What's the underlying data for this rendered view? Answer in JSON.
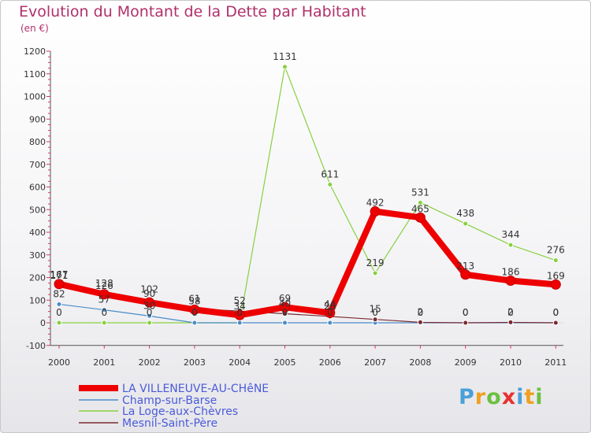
{
  "chart_data": {
    "type": "line",
    "title": "Evolution du Montant de la Dette par Habitant",
    "subtitle": "(en €)",
    "x": [
      "2000",
      "2001",
      "2002",
      "2003",
      "2004",
      "2005",
      "2006",
      "2007",
      "2008",
      "2009",
      "2010",
      "2011"
    ],
    "ylim": [
      -100,
      1200
    ],
    "yticks": [
      -100,
      0,
      100,
      200,
      300,
      400,
      500,
      600,
      700,
      800,
      900,
      1000,
      1100,
      1200
    ],
    "grid": false,
    "series": [
      {
        "name": "LA VILLENEUVE-AU-CHêNE",
        "color": "#ee0000",
        "values": [
          171,
          126,
          90,
          58,
          34,
          69,
          44,
          492,
          465,
          213,
          186,
          169
        ],
        "labels": [
          "171",
          "126",
          "90",
          "58",
          "34",
          "69",
          "44",
          "492",
          "465",
          "213",
          "186",
          "169"
        ]
      },
      {
        "name": "Champ-sur-Barse",
        "color": "#4a8cc8",
        "values": [
          82,
          57,
          30,
          0,
          0,
          0,
          0,
          0,
          0,
          0,
          0,
          0
        ],
        "labels": [
          "82",
          "57",
          "30",
          "0",
          "0",
          "0",
          "0",
          "0",
          "0",
          "0",
          "0",
          "0"
        ]
      },
      {
        "name": "La Loge-aux-Chèvres",
        "color": "#88d040",
        "values": [
          0,
          0,
          0,
          0,
          0,
          1131,
          611,
          219,
          531,
          438,
          344,
          276
        ],
        "labels": [
          "0",
          "0",
          "0",
          "0",
          "0",
          "1131",
          "611",
          "219",
          "531",
          "438",
          "344",
          "276"
        ]
      },
      {
        "name": "Mesnil-Saint-Père",
        "color": "#7a2a30",
        "values": [
          167,
          128,
          102,
          61,
          52,
          40,
          28,
          15,
          2,
          0,
          2,
          0
        ],
        "labels": [
          "167",
          "128",
          "102",
          "61",
          "52",
          "40",
          "28",
          "15",
          "2",
          "0",
          "2",
          "0"
        ]
      }
    ]
  },
  "logo": {
    "letters": [
      "P",
      "r",
      "o",
      "x",
      "i",
      "t",
      "i"
    ],
    "colors": [
      "#4aa0d8",
      "#f0a020",
      "#6cc040",
      "#e83030",
      "#4aa0d8",
      "#f0a020",
      "#6cc040"
    ]
  }
}
